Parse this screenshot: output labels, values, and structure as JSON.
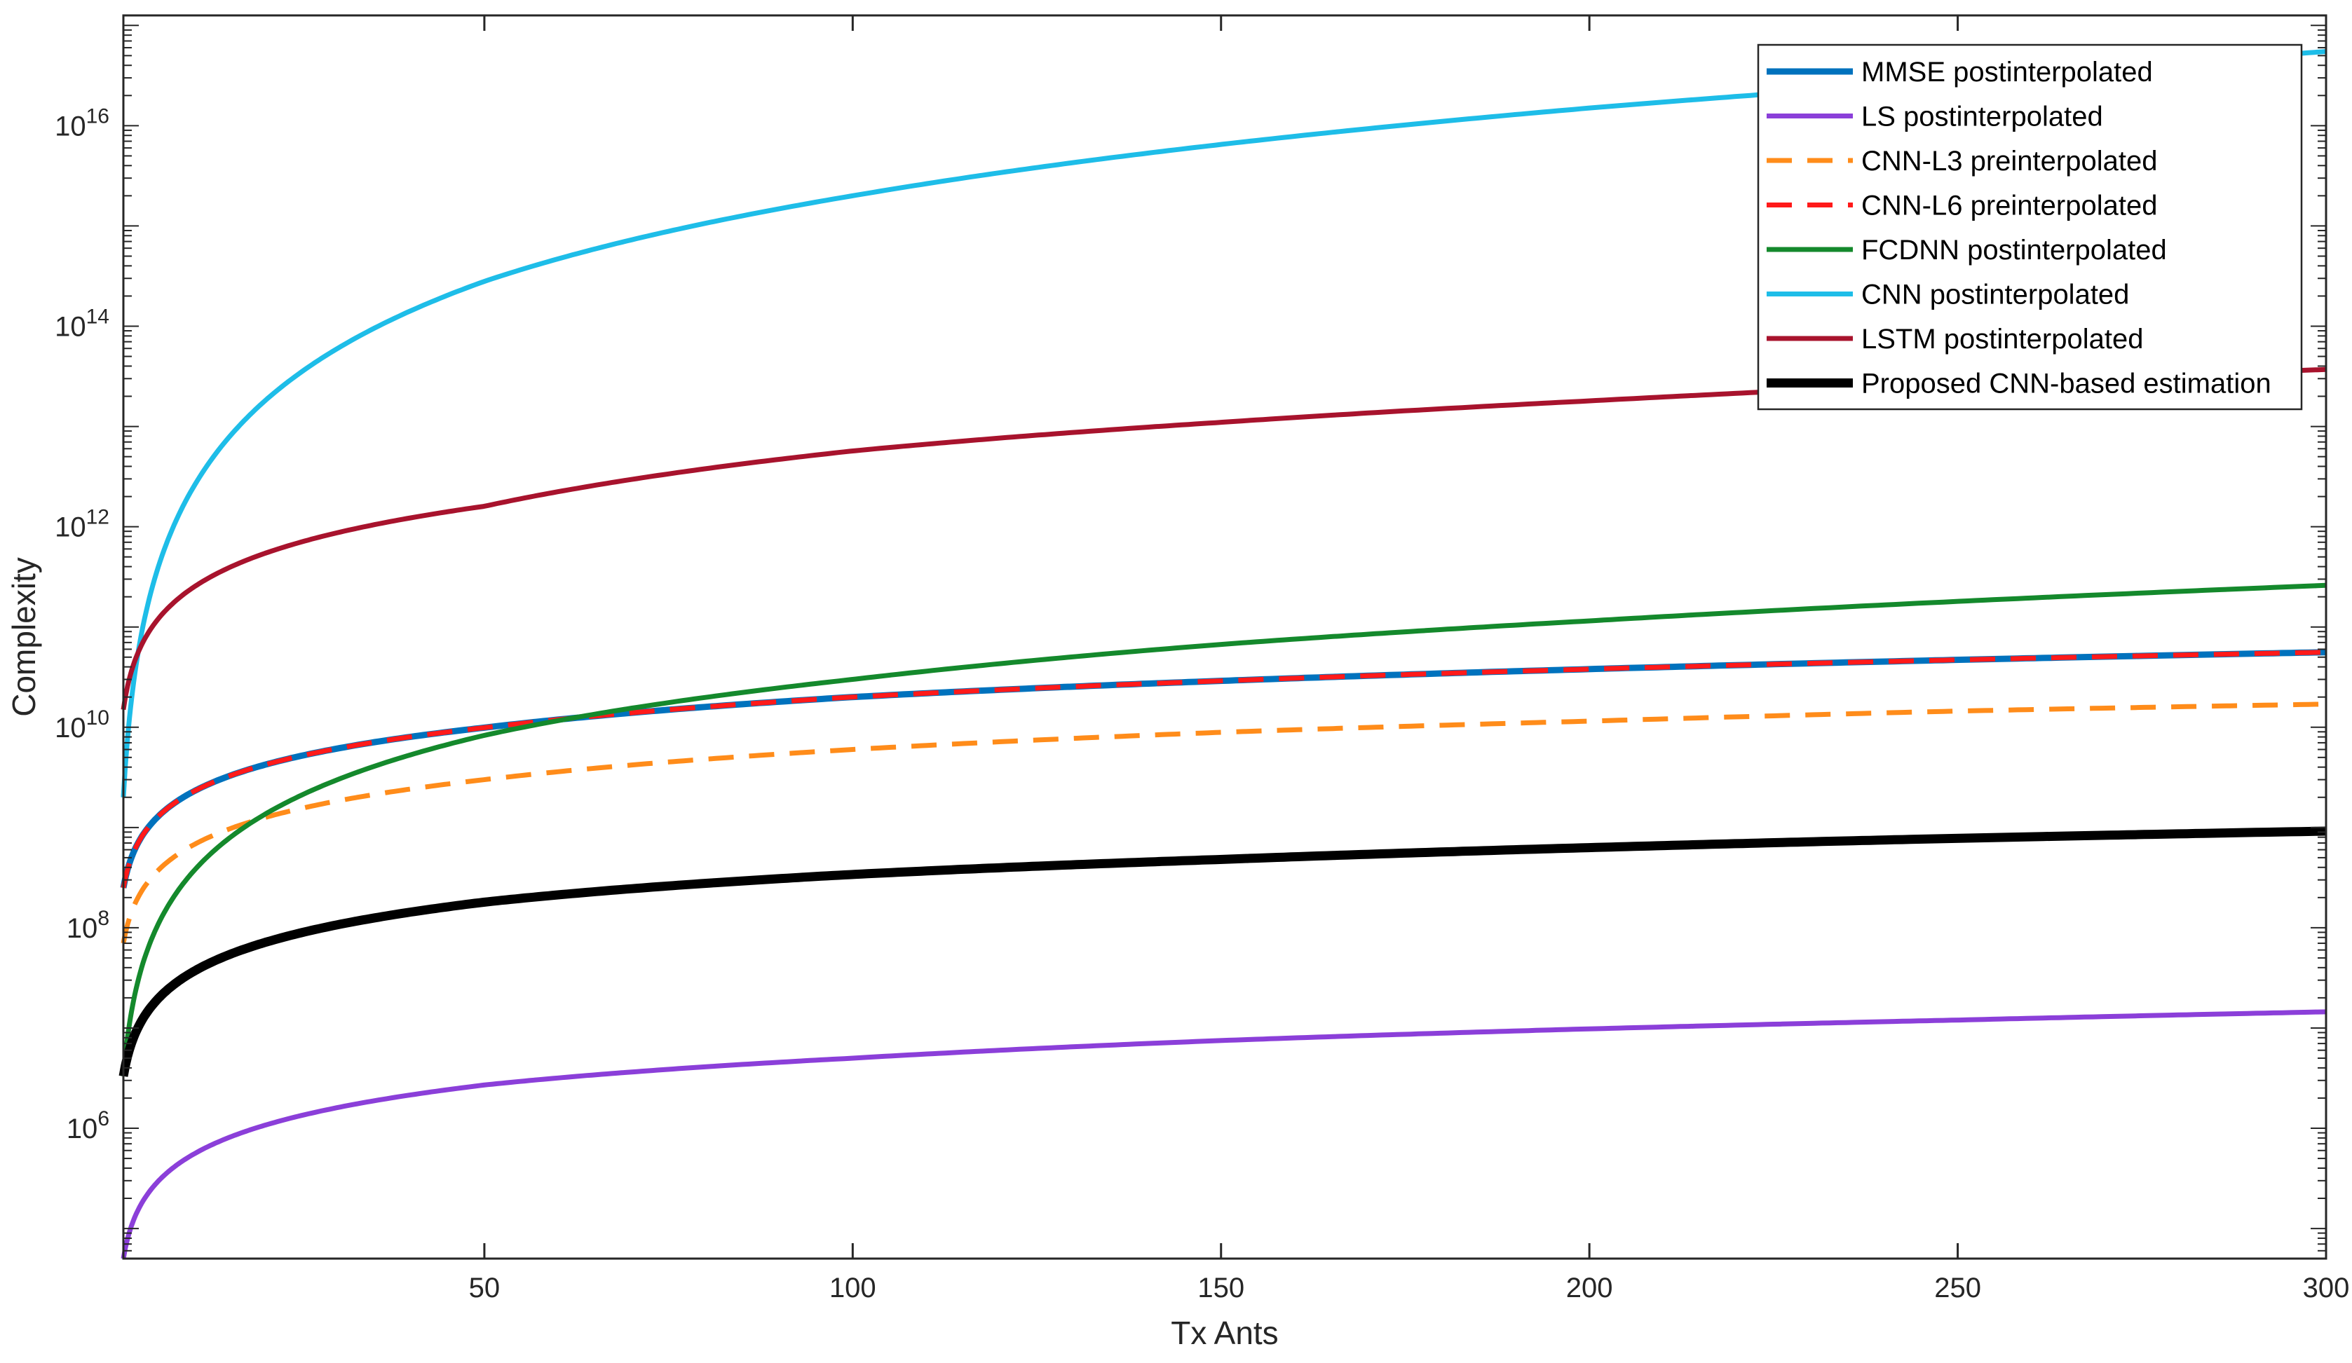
{
  "chart_data": {
    "type": "line",
    "title": "",
    "xlabel": "Tx Ants",
    "ylabel": "Complexity",
    "xlim": [
      1,
      300
    ],
    "ylim_log10": [
      4.7,
      17.1
    ],
    "yscale": "log",
    "grid": false,
    "legend_position": "top-right",
    "x_ticks": [
      50,
      100,
      150,
      200,
      250,
      300
    ],
    "y_ticks": [
      {
        "base": "10",
        "exp": "6",
        "log10": 6
      },
      {
        "base": "10",
        "exp": "8",
        "log10": 8
      },
      {
        "base": "10",
        "exp": "10",
        "log10": 10
      },
      {
        "base": "10",
        "exp": "12",
        "log10": 12
      },
      {
        "base": "10",
        "exp": "14",
        "log10": 14
      },
      {
        "base": "10",
        "exp": "16",
        "log10": 16
      }
    ],
    "series": [
      {
        "name": "MMSE postinterpolated",
        "color": "#0072BD",
        "dash": "solid",
        "width": 9,
        "x": [
          1,
          50,
          100,
          150,
          200,
          250,
          300
        ],
        "y": [
          250000000,
          9900000000,
          20000000000,
          29000000000,
          38000000000,
          47000000000,
          56000000000
        ]
      },
      {
        "name": "LS postinterpolated",
        "color": "#8B3FD9",
        "dash": "solid",
        "width": 7,
        "x": [
          1,
          50,
          100,
          150,
          200,
          250,
          300
        ],
        "y": [
          50000,
          2700000,
          5000000,
          7500000,
          9800000,
          12000000,
          14500000
        ]
      },
      {
        "name": "CNN-L3 preinterpolated",
        "color": "#FF8C1A",
        "dash": "dashed",
        "width": 7,
        "x": [
          1,
          50,
          100,
          150,
          200,
          250,
          300
        ],
        "y": [
          70000000,
          3000000000,
          6000000000,
          8900000000,
          11500000000,
          14500000000,
          17000000000
        ]
      },
      {
        "name": "CNN-L6 preinterpolated",
        "color": "#FF1A1A",
        "dash": "dashed",
        "width": 7,
        "x": [
          1,
          50,
          100,
          150,
          200,
          250,
          300
        ],
        "y": [
          250000000,
          9900000000,
          20000000000,
          29000000000,
          38000000000,
          47000000000,
          56000000000
        ]
      },
      {
        "name": "FCDNN postinterpolated",
        "color": "#14892C",
        "dash": "solid",
        "width": 7,
        "x": [
          1,
          50,
          100,
          150,
          200,
          250,
          300
        ],
        "y": [
          3300000,
          8300000000,
          30000000000,
          67000000000,
          115000000000,
          180000000000,
          260000000000
        ]
      },
      {
        "name": "CNN postinterpolated",
        "color": "#1EBDE8",
        "dash": "solid",
        "width": 7,
        "x": [
          1,
          50,
          100,
          150,
          200,
          250,
          300
        ],
        "y": [
          2000000000,
          280000000000000,
          2000000000000000,
          6500000000000000,
          15000000000000000,
          28000000000000000,
          55000000000000000
        ]
      },
      {
        "name": "LSTM postinterpolated",
        "color": "#A8132D",
        "dash": "solid",
        "width": 7,
        "x": [
          1,
          50,
          100,
          150,
          200,
          250,
          300
        ],
        "y": [
          15000000000,
          1600000000000,
          5700000000000,
          11000000000000,
          18000000000000,
          27000000000000,
          37000000000000
        ]
      },
      {
        "name": "Proposed CNN-based estimation",
        "color": "#000000",
        "dash": "solid",
        "width": 13,
        "x": [
          1,
          50,
          100,
          150,
          200,
          250,
          300
        ],
        "y": [
          3300000,
          180000000,
          340000000,
          480000000,
          630000000,
          780000000,
          920000000
        ]
      }
    ]
  }
}
